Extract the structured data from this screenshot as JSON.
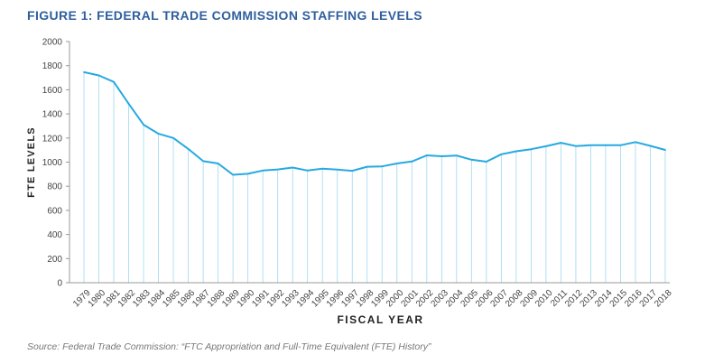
{
  "figure": {
    "title": "FIGURE 1: FEDERAL TRADE COMMISSION STAFFING LEVELS",
    "source": "Source: Federal Trade Commission: “FTC Appropriation and Full-Time Equivalent (FTE) History”"
  },
  "colors": {
    "line": "#27a9e1",
    "title": "#2f5f9e",
    "axis_text": "#444444",
    "grid_axis": "#999999"
  },
  "chart_data": {
    "type": "line",
    "title": "FIGURE 1: FEDERAL TRADE COMMISSION STAFFING LEVELS",
    "xlabel": "FISCAL YEAR",
    "ylabel": "FTE LEVELS",
    "ylim": [
      0,
      2000
    ],
    "yticks": [
      "0",
      "200",
      "400",
      "600",
      "800",
      "1000",
      "1200",
      "1400",
      "1600",
      "1800",
      "2000"
    ],
    "grid": false,
    "drop_lines": true,
    "categories": [
      "1979",
      "1980",
      "1981",
      "1982",
      "1983",
      "1984",
      "1985",
      "1986",
      "1987",
      "1988",
      "1989",
      "1990",
      "1991",
      "1992",
      "1993",
      "1994",
      "1995",
      "1996",
      "1997",
      "1998",
      "1999",
      "2000",
      "2001",
      "2002",
      "2003",
      "2004",
      "2005",
      "2006",
      "2007",
      "2008",
      "2009",
      "2010",
      "2011",
      "2012",
      "2013",
      "2014",
      "2015",
      "2016",
      "2017",
      "2018"
    ],
    "values": [
      1746,
      1719,
      1665,
      1485,
      1310,
      1235,
      1200,
      1109,
      1008,
      989,
      895,
      903,
      930,
      939,
      955,
      930,
      946,
      938,
      928,
      962,
      965,
      989,
      1005,
      1056,
      1049,
      1055,
      1020,
      1004,
      1065,
      1090,
      1107,
      1132,
      1160,
      1133,
      1140,
      1141,
      1140,
      1166,
      1135,
      1101
    ]
  }
}
